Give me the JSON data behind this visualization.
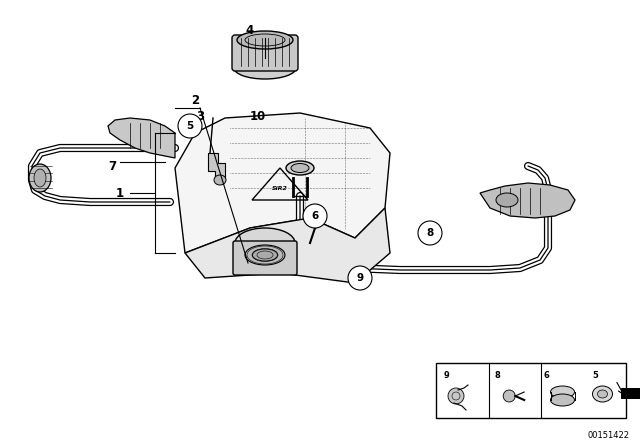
{
  "bg_color": "#ffffff",
  "part_number": "00151422",
  "line_color": "#000000",
  "gray_light": "#d8d8d8",
  "gray_med": "#b0b0b0",
  "gray_dark": "#888888"
}
